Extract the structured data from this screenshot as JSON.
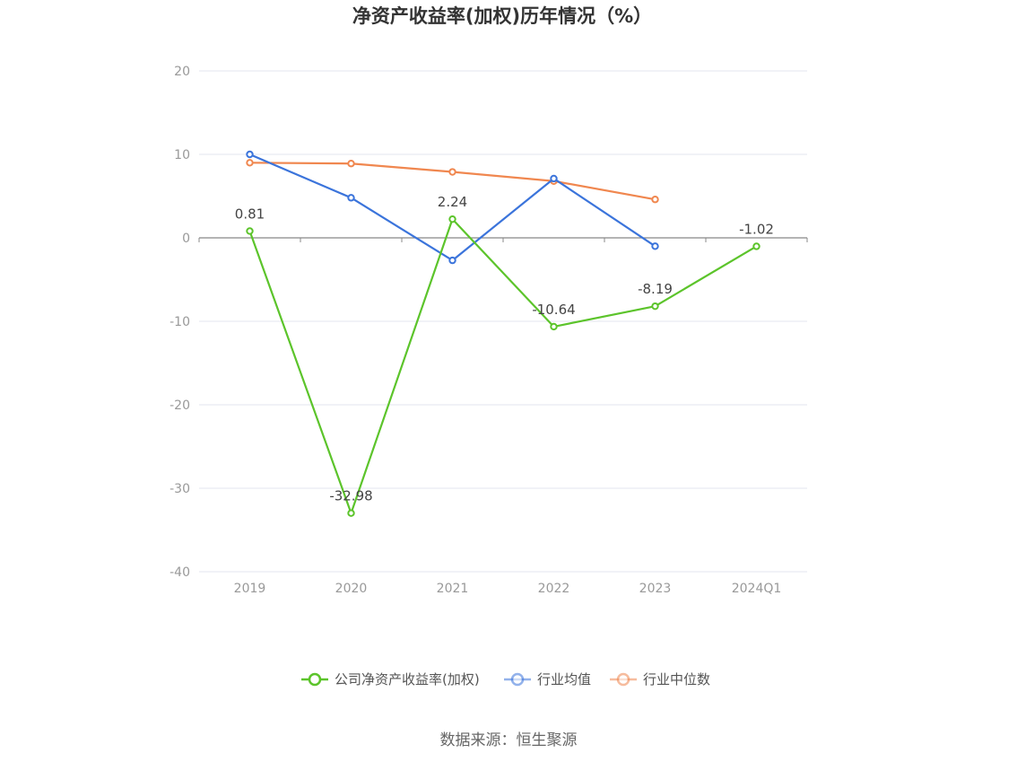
{
  "chart_data": {
    "type": "line",
    "title": "净资产收益率(加权)历年情况（%）",
    "categories": [
      "2019",
      "2020",
      "2021",
      "2022",
      "2023",
      "2024Q1"
    ],
    "y_ticks": [
      "20",
      "10",
      "0",
      "-10",
      "-20",
      "-30",
      "-40"
    ],
    "ylim": [
      -40,
      20
    ],
    "grid": true,
    "legend_position": "bottom",
    "series": [
      {
        "name": "公司净资产收益率(加权)",
        "color": "#5cc42b",
        "values": [
          0.81,
          -32.98,
          2.24,
          -10.64,
          -8.19,
          -1.02
        ],
        "labels": [
          "0.81",
          "-32.98",
          "2.24",
          "-10.64",
          "-8.19",
          "-1.02"
        ]
      },
      {
        "name": "行业均值",
        "color": "#3b74db",
        "values": [
          10.0,
          4.8,
          -2.7,
          7.1,
          -1.0,
          null
        ]
      },
      {
        "name": "行业中位数",
        "color": "#f0874f",
        "values": [
          9.0,
          8.9,
          7.9,
          6.8,
          4.6,
          null
        ]
      }
    ]
  },
  "source": "数据来源：恒生聚源"
}
